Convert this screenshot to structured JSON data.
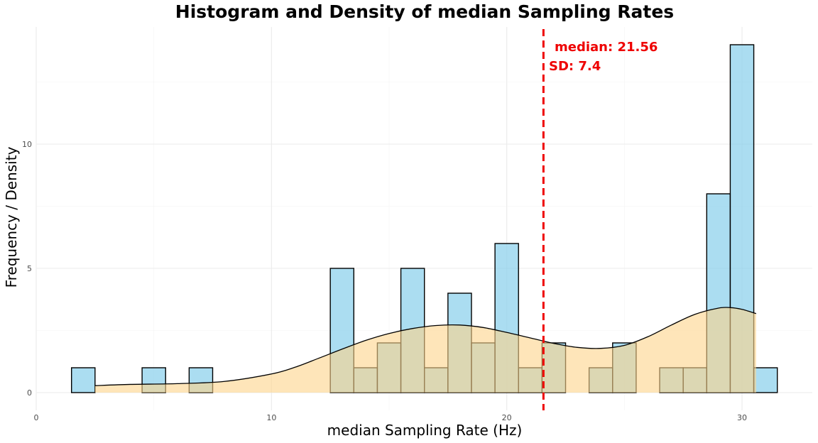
{
  "chart_data": {
    "type": "bar",
    "title": "Histogram and Density of median Sampling Rates",
    "xlabel": "median Sampling Rate (Hz)",
    "ylabel": "Frequency / Density",
    "xlim": [
      0,
      33
    ],
    "ylim": [
      -0.8,
      14.5
    ],
    "x_ticks": [
      0,
      10,
      20,
      30
    ],
    "y_ticks": [
      0,
      5,
      10
    ],
    "grid": true,
    "bin_width": 1,
    "histogram": {
      "bin_centers": [
        2,
        5,
        7,
        13,
        14,
        15,
        16,
        17,
        18,
        19,
        20,
        21,
        22,
        24,
        25,
        27,
        28,
        29,
        30,
        31
      ],
      "counts": [
        1,
        1,
        1,
        5,
        1,
        2,
        5,
        1,
        4,
        2,
        6,
        1,
        2,
        1,
        2,
        1,
        1,
        8,
        14,
        1
      ],
      "fill": "#87ceeb",
      "stroke": "#000000"
    },
    "density": {
      "x": [
        2.5,
        4,
        6,
        8,
        10,
        11,
        12,
        13,
        14,
        15,
        16,
        17,
        18,
        19,
        20,
        21,
        22,
        23,
        24,
        25,
        26,
        27,
        28,
        29,
        29.5,
        30,
        30.6
      ],
      "y": [
        0.28,
        0.33,
        0.36,
        0.45,
        0.75,
        1.02,
        1.38,
        1.75,
        2.1,
        2.38,
        2.58,
        2.7,
        2.72,
        2.62,
        2.42,
        2.2,
        1.98,
        1.82,
        1.78,
        1.9,
        2.25,
        2.72,
        3.15,
        3.4,
        3.42,
        3.35,
        3.18
      ],
      "fill": "#fdd38a",
      "stroke": "#000000"
    },
    "reference_line": {
      "x": 21.56,
      "color": "#ee0000",
      "style": "dashed"
    },
    "annotations": {
      "median_text": "median: 21.56",
      "sd_text": "SD: 7.4",
      "color": "#ee0000"
    }
  }
}
